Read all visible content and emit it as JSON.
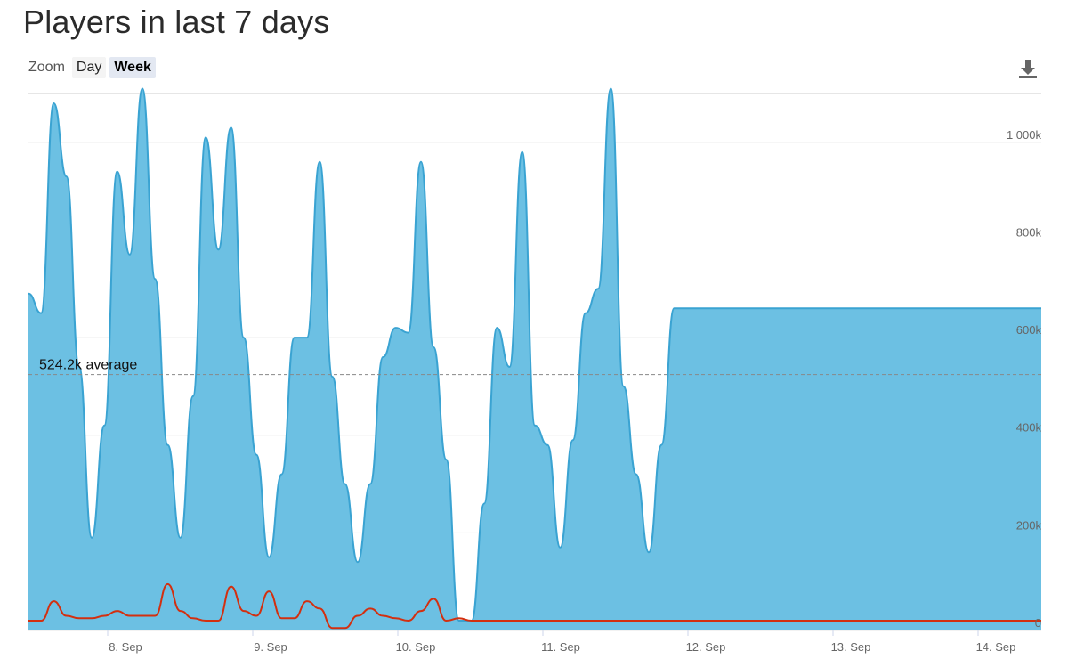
{
  "header": {
    "title": "Players in last 7 days"
  },
  "zoom": {
    "label": "Zoom",
    "options": [
      "Day",
      "Week"
    ],
    "selected": "Week"
  },
  "toolbar": {
    "download_icon": "download-icon"
  },
  "chart_data": {
    "type": "area",
    "title": "Players in last 7 days",
    "x_tick_labels": [
      "8. Sep",
      "9. Sep",
      "10. Sep",
      "11. Sep",
      "12. Sep",
      "13. Sep",
      "14. Sep"
    ],
    "y_tick_labels": [
      "0",
      "200k",
      "400k",
      "600k",
      "800k",
      "1 000k"
    ],
    "ylim": [
      0,
      1100000
    ],
    "grid": true,
    "average": {
      "value": 524200,
      "label": "524.2k average"
    },
    "colors": {
      "players": "#6cc0e3",
      "players_line": "#3aa3d2",
      "secondary": "#d32f0f",
      "grid": "#e6e6e6",
      "average_line": "#888888"
    },
    "series": [
      {
        "style": "area",
        "x": [
          "7 Sep 18:00",
          "7 Sep 20:00",
          "7 Sep 22:00",
          "8 Sep 00:00",
          "8 Sep 02:00",
          "8 Sep 04:00",
          "8 Sep 06:00",
          "8 Sep 08:00",
          "8 Sep 10:00",
          "8 Sep 12:00",
          "8 Sep 14:00",
          "8 Sep 16:00",
          "8 Sep 18:00",
          "8 Sep 20:00",
          "8 Sep 22:00",
          "9 Sep 00:00",
          "9 Sep 02:00",
          "9 Sep 04:00",
          "9 Sep 06:00",
          "9 Sep 08:00",
          "9 Sep 10:00",
          "9 Sep 12:00",
          "9 Sep 14:00",
          "9 Sep 16:00",
          "9 Sep 18:00",
          "9 Sep 20:00",
          "9 Sep 22:00",
          "10 Sep 00:00",
          "10 Sep 02:00",
          "10 Sep 04:00",
          "10 Sep 06:00",
          "10 Sep 08:00",
          "10 Sep 10:00",
          "10 Sep 12:00",
          "10 Sep 14:00",
          "10 Sep 16:00",
          "10 Sep 18:00",
          "10 Sep 20:00",
          "10 Sep 22:00",
          "11 Sep 00:00",
          "11 Sep 02:00",
          "11 Sep 04:00",
          "11 Sep 06:00",
          "11 Sep 08:00",
          "11 Sep 10:00",
          "11 Sep 12:00",
          "11 Sep 14:00",
          "11 Sep 16:00",
          "11 Sep 18:00",
          "11 Sep 20:00",
          "11 Sep 22:00",
          "12 Sep 00:00",
          "12 Sep 02:00",
          "12 Sep 04:00",
          "12 Sep 06:00",
          "12 Sep 08:00",
          "12 Sep 10:00",
          "12 Sep 12:00",
          "12 Sep 14:00",
          "12 Sep 16:00",
          "12 Sep 18:00",
          "12 Sep 20:00",
          "12 Sep 22:00",
          "13 Sep 00:00",
          "13 Sep 02:00",
          "13 Sep 04:00",
          "13 Sep 06:00",
          "13 Sep 08:00",
          "13 Sep 10:00",
          "13 Sep 12:00",
          "13 Sep 14:00",
          "13 Sep 16:00",
          "13 Sep 18:00",
          "13 Sep 20:00",
          "13 Sep 22:00",
          "14 Sep 00:00",
          "14 Sep 02:00",
          "14 Sep 04:00",
          "14 Sep 06:00",
          "14 Sep 08:00",
          "14 Sep 10:00"
        ],
        "values": [
          690000,
          650000,
          1080000,
          930000,
          540000,
          190000,
          420000,
          940000,
          770000,
          1110000,
          720000,
          380000,
          190000,
          480000,
          1010000,
          780000,
          1030000,
          600000,
          360000,
          150000,
          320000,
          600000,
          600000,
          960000,
          520000,
          300000,
          140000,
          300000,
          560000,
          620000,
          610000,
          960000,
          580000,
          350000,
          20000,
          20000,
          260000,
          620000,
          540000,
          980000,
          420000,
          380000,
          170000,
          390000,
          650000,
          700000,
          1110000,
          500000,
          320000,
          160000,
          380000,
          660000,
          660000,
          660000,
          660000,
          660000,
          660000,
          660000,
          660000,
          660000,
          660000,
          660000,
          660000,
          660000,
          660000,
          660000,
          660000,
          660000,
          660000,
          660000,
          660000,
          660000,
          660000,
          660000,
          660000,
          660000,
          660000,
          660000,
          660000,
          660000,
          660000
        ]
      },
      {
        "style": "line",
        "values": [
          20000,
          20000,
          60000,
          30000,
          25000,
          25000,
          30000,
          40000,
          30000,
          30000,
          30000,
          95000,
          40000,
          25000,
          20000,
          20000,
          90000,
          40000,
          30000,
          80000,
          25000,
          25000,
          60000,
          45000,
          5000,
          5000,
          30000,
          45000,
          30000,
          25000,
          20000,
          40000,
          65000,
          20000,
          25000,
          20000,
          20000,
          20000,
          20000,
          20000,
          20000,
          20000,
          20000,
          20000,
          20000,
          20000,
          20000,
          20000,
          20000,
          20000,
          20000,
          20000,
          20000,
          20000,
          20000,
          20000,
          20000,
          20000,
          20000,
          20000,
          20000,
          20000,
          20000,
          20000,
          20000,
          20000,
          20000,
          20000,
          20000,
          20000,
          20000,
          20000,
          20000,
          20000,
          20000,
          20000,
          20000,
          20000,
          20000,
          20000,
          20000
        ]
      }
    ]
  }
}
